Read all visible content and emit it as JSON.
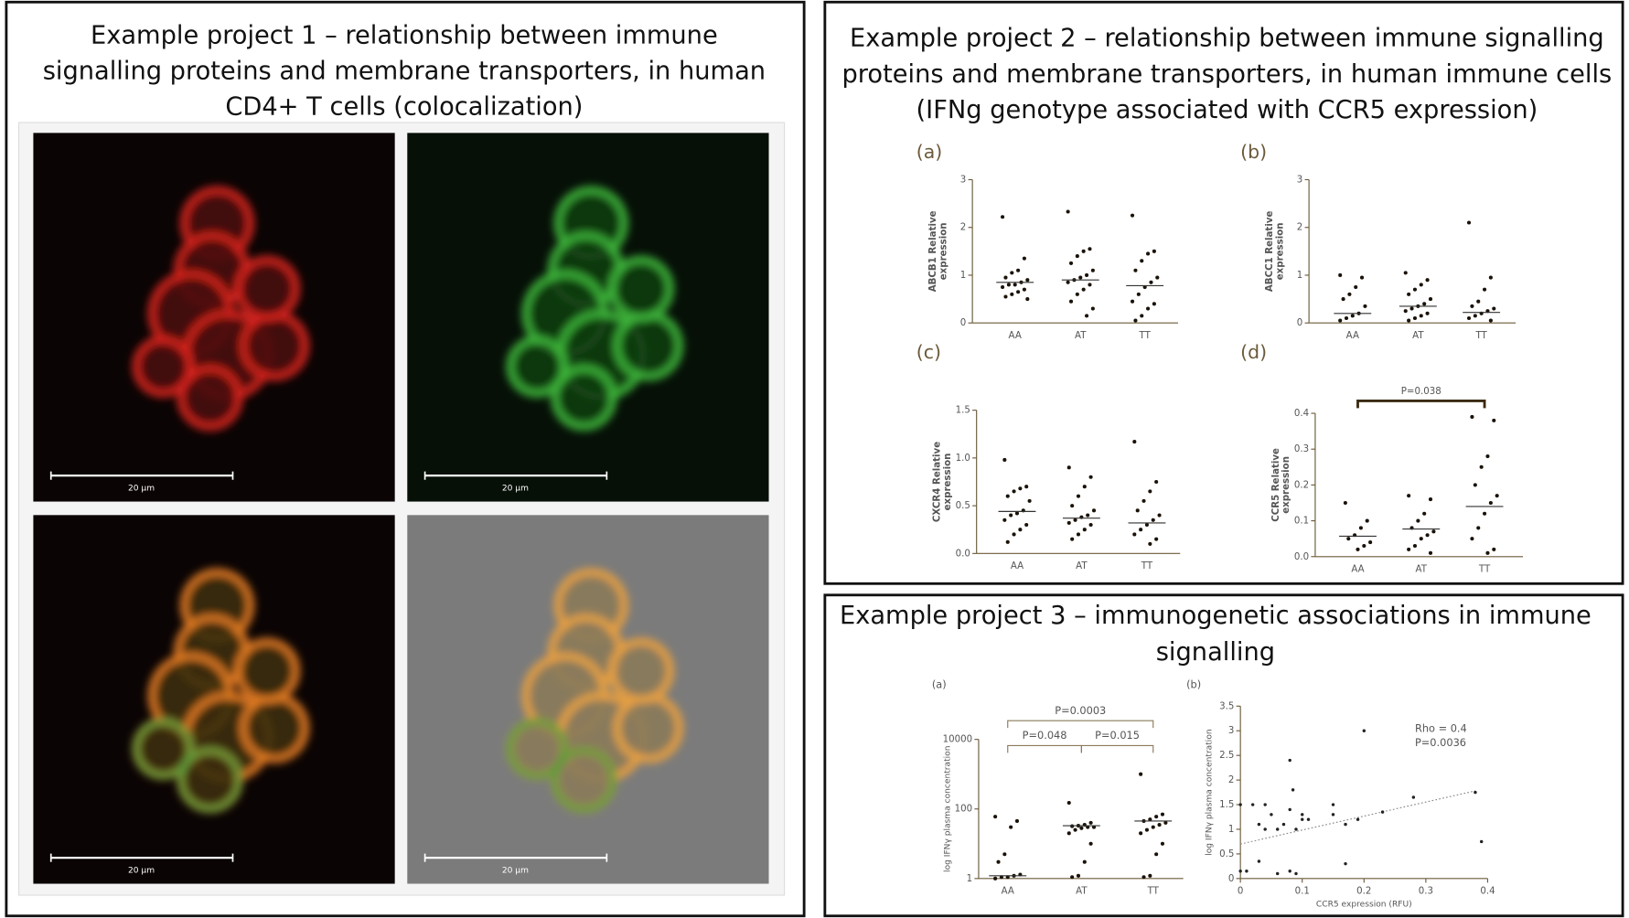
{
  "panels": [
    {
      "title": [
        "Example project 1 – relationship between immune",
        "signalling proteins and membrane transporters, in human",
        "CD4+ T cells (colocalization)"
      ]
    },
    {
      "title": [
        "Example project 2 – relationship between immune signalling",
        "proteins and membrane transporters, in human immune cells",
        "(IFNg genotype associated with CCR5 expression)"
      ]
    },
    {
      "title": [
        "Example project 3 – immunogenetic associations in immune",
        "signalling"
      ]
    }
  ],
  "images": [
    {
      "scale_bar": "20 µm"
    },
    {
      "scale_bar": "20 µm"
    },
    {
      "scale_bar": "20 µm"
    },
    {
      "scale_bar": "20 µm"
    }
  ],
  "chart_data": [
    {
      "type": "dot",
      "panel_label": "(a)",
      "ylabel": [
        "ABCB1 Relative",
        "expression"
      ],
      "categories": [
        "AA",
        "AT",
        "TT"
      ],
      "values": [
        [
          2.22,
          1.35,
          1.1,
          1.05,
          0.95,
          0.9,
          0.85,
          0.8,
          0.8,
          0.75,
          0.7,
          0.65,
          0.6,
          0.55,
          0.5
        ],
        [
          2.33,
          1.55,
          1.5,
          1.4,
          1.25,
          1.1,
          1.0,
          0.95,
          0.9,
          0.85,
          0.8,
          0.7,
          0.6,
          0.45,
          0.3,
          0.15
        ],
        [
          2.25,
          1.5,
          1.45,
          1.3,
          1.1,
          0.95,
          0.85,
          0.75,
          0.6,
          0.45,
          0.4,
          0.3,
          0.15,
          0.05
        ]
      ],
      "medians": [
        0.85,
        0.9,
        0.78
      ],
      "ylim": [
        0,
        3
      ],
      "yticks": [
        0,
        1,
        2,
        3
      ],
      "annotations": []
    },
    {
      "type": "dot",
      "panel_label": "(b)",
      "ylabel": [
        "ABCC1 Relative",
        "expression"
      ],
      "categories": [
        "AA",
        "AT",
        "TT"
      ],
      "values": [
        [
          1.0,
          0.95,
          0.75,
          0.6,
          0.5,
          0.35,
          0.2,
          0.15,
          0.1,
          0.05
        ],
        [
          1.05,
          0.9,
          0.8,
          0.7,
          0.6,
          0.5,
          0.4,
          0.35,
          0.3,
          0.25,
          0.2,
          0.15,
          0.1,
          0.05
        ],
        [
          2.1,
          0.95,
          0.7,
          0.45,
          0.35,
          0.3,
          0.25,
          0.2,
          0.15,
          0.1,
          0.05
        ]
      ],
      "medians": [
        0.2,
        0.35,
        0.22
      ],
      "ylim": [
        0,
        3
      ],
      "yticks": [
        0,
        1,
        2,
        3
      ],
      "annotations": []
    },
    {
      "type": "dot",
      "panel_label": "(c)",
      "ylabel": [
        "CXCR4 Relative",
        "expression"
      ],
      "categories": [
        "AA",
        "AT",
        "TT"
      ],
      "values": [
        [
          0.98,
          0.7,
          0.68,
          0.65,
          0.6,
          0.55,
          0.45,
          0.42,
          0.4,
          0.35,
          0.3,
          0.25,
          0.2,
          0.12
        ],
        [
          0.9,
          0.8,
          0.7,
          0.6,
          0.5,
          0.45,
          0.4,
          0.38,
          0.35,
          0.32,
          0.3,
          0.25,
          0.2,
          0.15
        ],
        [
          1.17,
          0.75,
          0.65,
          0.55,
          0.45,
          0.4,
          0.35,
          0.3,
          0.25,
          0.2,
          0.15,
          0.1
        ]
      ],
      "medians": [
        0.44,
        0.37,
        0.32
      ],
      "ylim": [
        0,
        1.5
      ],
      "yticks": [
        {
          "value": 0,
          "label": "0.0"
        },
        0.5,
        {
          "value": 1,
          "label": "1.0"
        },
        1.5
      ],
      "annotations": []
    },
    {
      "type": "dot",
      "panel_label": "(d)",
      "ylabel": [
        "CCR5 Relative",
        "expression"
      ],
      "categories": [
        "AA",
        "AT",
        "TT"
      ],
      "values": [
        [
          0.15,
          0.1,
          0.08,
          0.06,
          0.05,
          0.04,
          0.03,
          0.02
        ],
        [
          0.17,
          0.16,
          0.12,
          0.1,
          0.08,
          0.07,
          0.06,
          0.05,
          0.03,
          0.02,
          0.01
        ],
        [
          0.39,
          0.38,
          0.28,
          0.25,
          0.2,
          0.17,
          0.15,
          0.12,
          0.08,
          0.05,
          0.02,
          0.01
        ]
      ],
      "medians": [
        0.057,
        0.077,
        0.14
      ],
      "ylim": [
        0,
        0.4
      ],
      "yticks": [
        {
          "value": 0,
          "label": "0.0"
        },
        0.1,
        0.2,
        0.3,
        0.4
      ],
      "annotations": [
        "P=0.038"
      ]
    },
    {
      "type": "dot",
      "panel_label": "(a)",
      "ylabel": [
        "log IFNγ plasma concentration"
      ],
      "categories": [
        "AA",
        "AT",
        "TT"
      ],
      "log": true,
      "values": [
        [
          60,
          45,
          30,
          5,
          3,
          1.3,
          1.2,
          1.1,
          1.1,
          1
        ],
        [
          150,
          40,
          35,
          33,
          32,
          30,
          30,
          28,
          25,
          20,
          10,
          3,
          1.2,
          1.1
        ],
        [
          1000,
          70,
          60,
          50,
          45,
          40,
          35,
          30,
          25,
          20,
          10,
          5,
          1.2,
          1.1
        ]
      ],
      "medians": [
        1.2,
        33,
        45
      ],
      "ylim": [
        1,
        10000
      ],
      "yticks": [
        1,
        100,
        10000
      ],
      "annotations": [
        "P=0.0003",
        "P=0.048",
        "P=0.015"
      ]
    },
    {
      "type": "scatter",
      "panel_label": "(b)",
      "xlabel": "CCR5 expression (RFU)",
      "ylabel": [
        "log IFNγ plasma concentration"
      ],
      "x": [
        0,
        0,
        0.01,
        0.02,
        0.03,
        0.03,
        0.04,
        0.04,
        0.05,
        0.06,
        0.06,
        0.07,
        0.08,
        0.08,
        0.085,
        0.09,
        0.1,
        0.1,
        0.15,
        0.15,
        0.17,
        0.17,
        0.19,
        0.2,
        0.23,
        0.28,
        0.38,
        0.39,
        0.08,
        0.09,
        0.11
      ],
      "y": [
        1.5,
        0.15,
        0.15,
        1.5,
        1.1,
        0.35,
        1.5,
        1.0,
        1.3,
        1.0,
        0.1,
        1.1,
        1.4,
        2.4,
        1.8,
        1.0,
        1.3,
        1.2,
        1.5,
        1.3,
        1.1,
        0.3,
        1.2,
        3.0,
        1.35,
        1.65,
        1.75,
        0.75,
        0.15,
        0.1,
        1.2
      ],
      "trendline": {
        "x": [
          0,
          0.38
        ],
        "y": [
          0.7,
          1.78
        ]
      },
      "xlim": [
        0,
        0.4
      ],
      "xticks": [
        0,
        0.1,
        0.2,
        0.3,
        0.4
      ],
      "ylim": [
        0,
        3.5
      ],
      "yticks": [
        0,
        0.5,
        1,
        1.5,
        2,
        2.5,
        3,
        3.5
      ],
      "annotations": [
        "Rho =  0.4",
        "P=0.0036"
      ]
    }
  ]
}
